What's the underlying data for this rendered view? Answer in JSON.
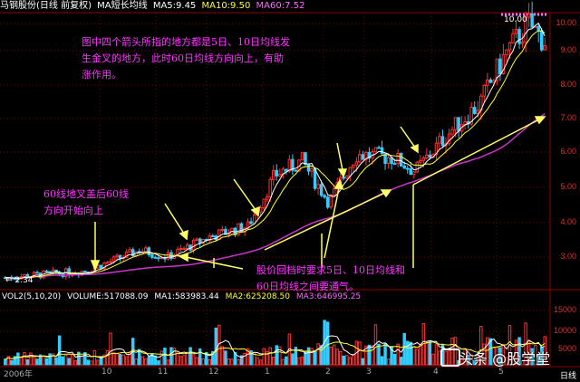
{
  "header": {
    "title": "马钢股份(日线 前复权)",
    "indicator": "MA短长均线",
    "ma5": "MA5:9.45",
    "ma10": "MA10:9.50",
    "ma60": "MA60:7.52"
  },
  "annotations": {
    "top_note": [
      "图中四个箭头所指的地方都是5日、10日均线发",
      "生金叉的地方，此时60日均线方向向上，有助",
      "涨作用。"
    ],
    "left_note": [
      "60线地叉盖后60线",
      "方向开始向上"
    ],
    "bottom_note": [
      "股价回档时要求5日、10日均线和",
      "60日均线之间要通气。"
    ],
    "high_label": "10.00",
    "low_label": "← 2.34"
  },
  "price_axis": [
    "10.00",
    "9.00",
    "8.00",
    "7.00",
    "6.00",
    "5.00",
    "4.00",
    "3.00"
  ],
  "volume_axis": [
    "15000",
    "10000",
    "5000"
  ],
  "volume_header": {
    "label": "VOL2(5,10,20)",
    "volume": "VOLUME:517088.09",
    "ma1": "MA1:583983.44",
    "ma2": "MA2:625208.50",
    "ma3": "MA3:646995.25"
  },
  "x_axis": [
    "2006年",
    "10",
    "11",
    "12",
    "1",
    "2",
    "3",
    "4",
    "5"
  ],
  "footer": {
    "watermark": "头条 @股学堂",
    "period": "日线"
  },
  "colors": {
    "up": "#ff3030",
    "down": "#33ccff",
    "ma5": "#ffffff",
    "ma10": "#ffff33",
    "ma60": "#cc33cc",
    "arrow": "#ffff66"
  }
}
